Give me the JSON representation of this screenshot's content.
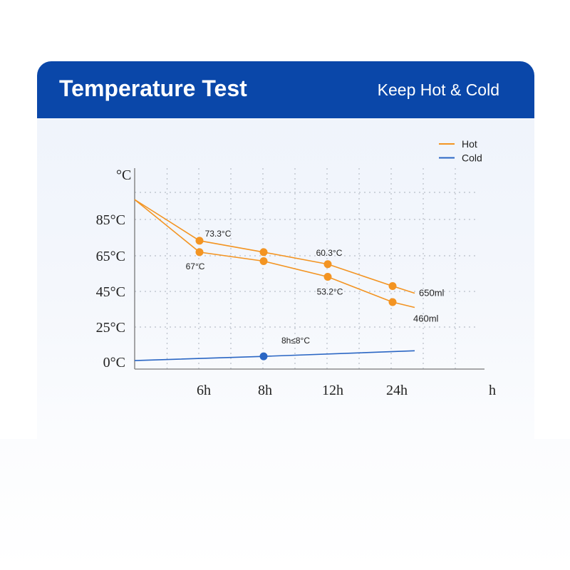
{
  "header": {
    "title": "Temperature Test",
    "subtitle": "Keep Hot & Cold"
  },
  "colors": {
    "header_bg": "#0a47a9",
    "hot": "#f39422",
    "cold": "#2a66c4"
  },
  "chart_data": {
    "type": "line",
    "y_unit_label": "°C",
    "x_unit_label": "h",
    "x_ticks": [
      "6h",
      "8h",
      "12h",
      "24h"
    ],
    "y_ticks": [
      "85°C",
      "65°C",
      "45°C",
      "25°C",
      "0°C"
    ],
    "grid": true,
    "legend_position": "top-right",
    "legend": [
      {
        "name": "Hot",
        "color": "#f39422"
      },
      {
        "name": "Cold",
        "color": "#2a66c4"
      }
    ],
    "series": [
      {
        "id": "hot-650",
        "legend": "Hot",
        "end_label": "650ml",
        "points": [
          {
            "x": "0h",
            "y": 96
          },
          {
            "x": "6h",
            "y": 73.3,
            "label": "73.3°C",
            "marker": true
          },
          {
            "x": "8h",
            "y": 67,
            "marker": true
          },
          {
            "x": "12h",
            "y": 60.3,
            "label": "60.3°C",
            "marker": true
          },
          {
            "x": "24h",
            "y": 48,
            "marker": true
          },
          {
            "x": "end",
            "y": 44
          }
        ]
      },
      {
        "id": "hot-460",
        "legend": "Hot",
        "end_label": "460ml",
        "points": [
          {
            "x": "0h",
            "y": 96
          },
          {
            "x": "6h",
            "y": 67,
            "label": "67°C",
            "marker": true
          },
          {
            "x": "8h",
            "y": 62,
            "marker": true
          },
          {
            "x": "12h",
            "y": 53.2,
            "label": "53.2°C",
            "marker": true
          },
          {
            "x": "24h",
            "y": 39,
            "marker": true
          },
          {
            "x": "end",
            "y": 36
          }
        ]
      },
      {
        "id": "cold",
        "legend": "Cold",
        "points": [
          {
            "x": "0h",
            "y": 1
          },
          {
            "x": "8h",
            "y": 4,
            "label": "8h≤8°C",
            "marker": true
          },
          {
            "x": "end",
            "y": 8
          }
        ]
      }
    ]
  }
}
